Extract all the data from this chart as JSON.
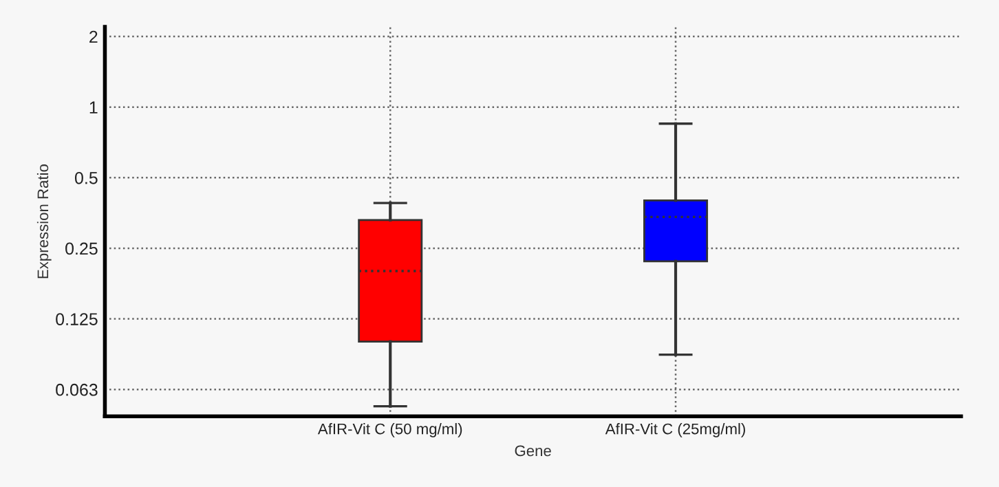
{
  "chart_data": {
    "type": "box",
    "xlabel": "Gene",
    "ylabel": "Expression Ratio",
    "categories": [
      "AfIR-Vit C (50 mg/ml)",
      "AfIR-Vit C (25mg/ml)"
    ],
    "boxes": [
      {
        "low": 0.053,
        "q1": 0.1,
        "median": 0.2,
        "q3": 0.33,
        "high": 0.39
      },
      {
        "low": 0.088,
        "q1": 0.22,
        "median": 0.34,
        "q3": 0.4,
        "high": 0.85
      }
    ],
    "colors": [
      "#ff0000",
      "#0000ff"
    ],
    "log": "y",
    "ylim": [
      0.048,
      2.2
    ],
    "yticks": [
      {
        "value": 0.0625,
        "label": "0.063"
      },
      0.125,
      0.25,
      0.5,
      1,
      2
    ],
    "grid": true
  }
}
